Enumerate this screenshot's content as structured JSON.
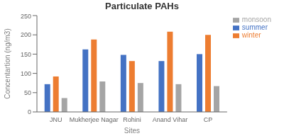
{
  "chart_data": {
    "type": "bar",
    "title": "Particulate PAHs",
    "xlabel": "Sites",
    "ylabel": "Concentartion (ng/m3)",
    "categories": [
      "JNU",
      "Mukherjee Nagar",
      "Rohini",
      "Anand Vihar",
      "CP"
    ],
    "series": [
      {
        "name": "summer",
        "color": "#4472C4",
        "values": [
          72,
          162,
          148,
          132,
          150
        ]
      },
      {
        "name": "winter",
        "color": "#ED7D31",
        "values": [
          92,
          188,
          132,
          208,
          200
        ]
      },
      {
        "name": "monsoon",
        "color": "#A5A5A5",
        "values": [
          36,
          79,
          75,
          72,
          67
        ]
      }
    ],
    "ylim": [
      0,
      250
    ],
    "yticks": [
      0,
      50,
      100,
      150,
      200,
      250
    ],
    "legend": "upper right",
    "grid": false
  }
}
